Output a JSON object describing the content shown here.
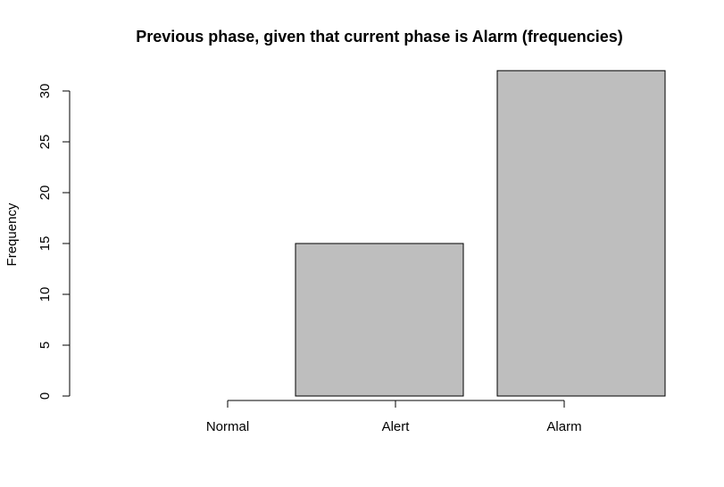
{
  "chart_data": {
    "type": "bar",
    "title": "Previous phase, given that current phase is Alarm (frequencies)",
    "ylabel": "Frequency",
    "xlabel": "",
    "categories": [
      "Normal",
      "Alert",
      "Alarm"
    ],
    "values": [
      0,
      15,
      32
    ],
    "ylim": [
      0,
      30
    ],
    "yticks": [
      0,
      5,
      10,
      15,
      20,
      25,
      30
    ],
    "bar_fill": "#bebebe",
    "bar_stroke": "#000000",
    "grid": false,
    "legend": "none"
  }
}
